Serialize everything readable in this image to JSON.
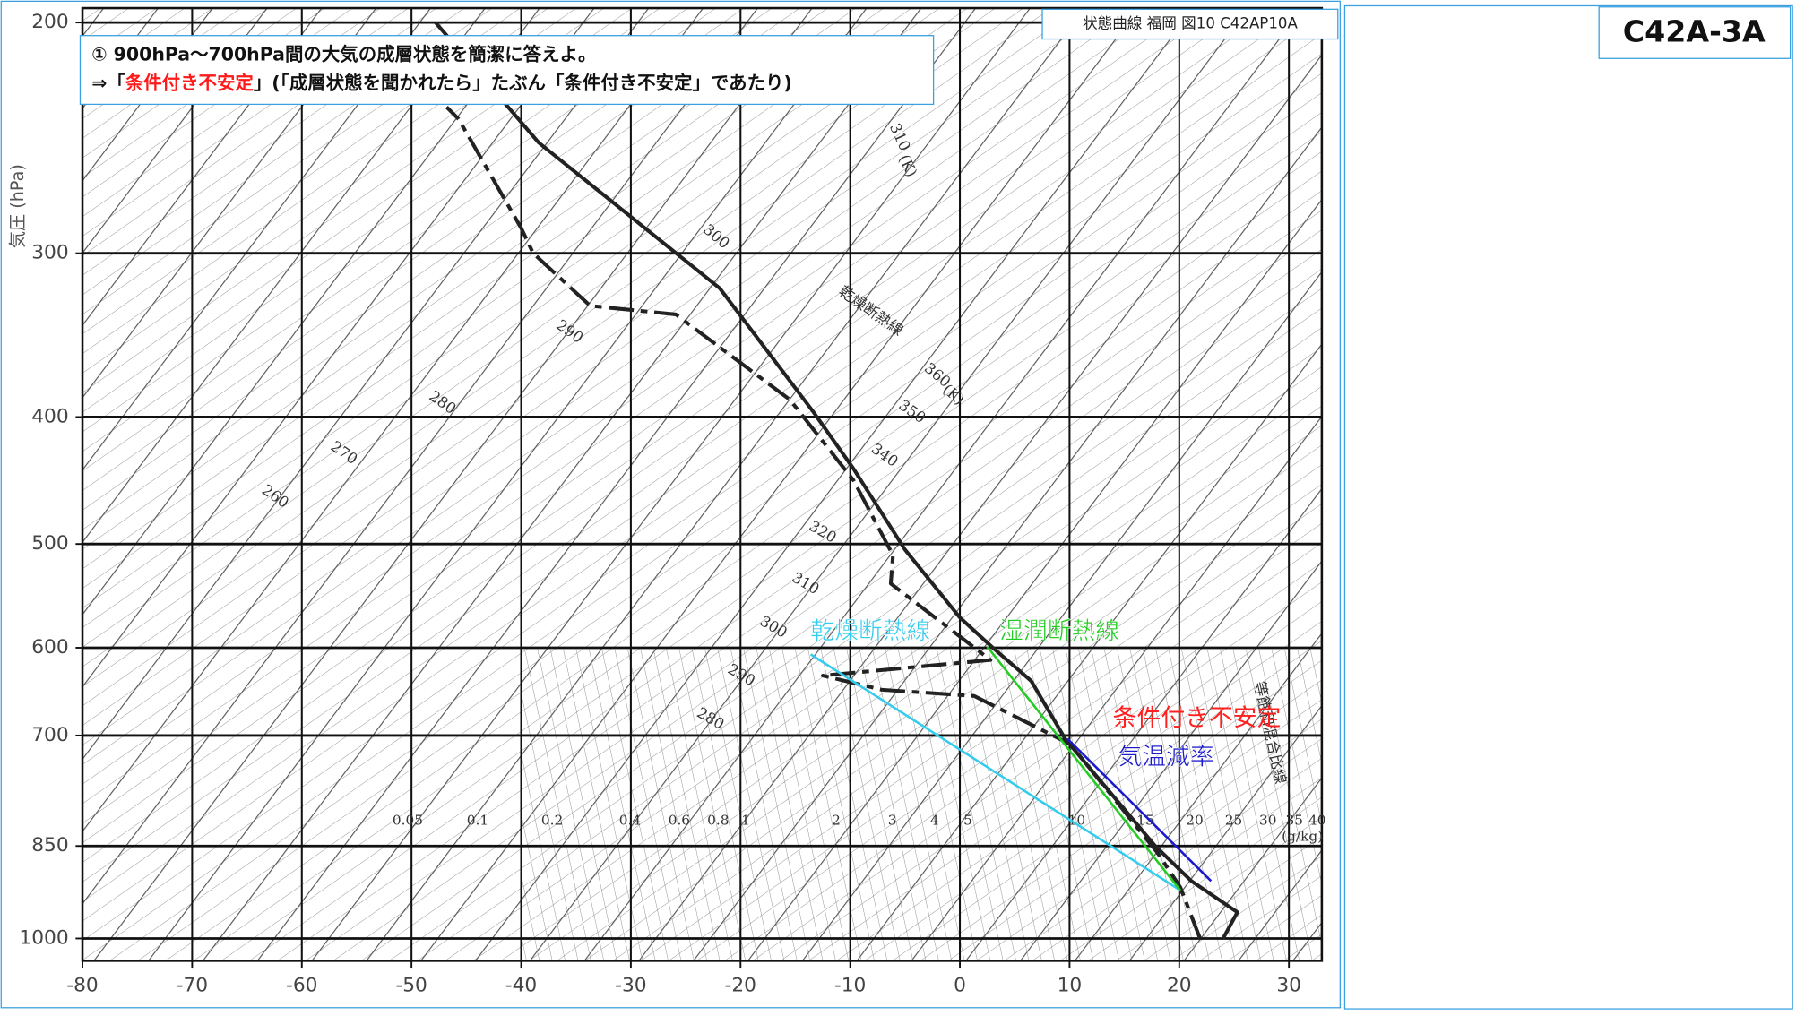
{
  "chart_data": {
    "type": "line",
    "title": "状態曲線 福岡 図10 C42AP10A",
    "code": "C42A-3A",
    "question": {
      "line1": "① 900hPa～700hPa間の大気の成層状態を簡潔に答えよ。",
      "line2_prefix": "⇒「",
      "answer": "条件付き不安定",
      "line2_suffix": "」(「成層状態を聞かれたら」たぶん「条件付き不安定」であたり)"
    },
    "y_label": "気圧 (hPa)",
    "y_scale": "log",
    "xlim": [
      -80,
      33
    ],
    "ylim": [
      1040,
      195
    ],
    "xticks": [
      -80,
      -70,
      -60,
      -50,
      -40,
      -30,
      -20,
      -10,
      0,
      10,
      20,
      30
    ],
    "yticks": [
      200,
      300,
      400,
      500,
      600,
      700,
      850,
      1000
    ],
    "grid": true,
    "series": [
      {
        "color": "#222222",
        "dash": false,
        "x": [
          24.0,
          25.3,
          21.1,
          17.8,
          9.6,
          6.5,
          3.1,
          0.0,
          -5.0,
          -9.7,
          -13.4,
          -21.9,
          -38.4,
          -47.8
        ],
        "values": [
          1000,
          955,
          904,
          850,
          704,
          636,
          601,
          569,
          505,
          438,
          396,
          319,
          247,
          200
        ]
      },
      {
        "color": "#222222",
        "dash": true,
        "x": [
          21.9,
          20.1,
          18.0,
          10.1,
          1.3,
          -7.1,
          -12.5,
          2.8,
          -6.3,
          -6.1,
          -9.7,
          -15.5,
          -25.9,
          -33.7,
          -38.9,
          -40.0,
          -45.7,
          -46.8
        ],
        "values": [
          1000,
          914,
          860,
          711,
          653,
          646,
          630,
          613,
          536,
          510,
          447,
          388,
          334,
          329,
          300,
          287,
          237,
          232
        ]
      },
      {
        "name": "乾燥断熱線",
        "color": "#33ccee",
        "dash": false,
        "x": [
          -13.6,
          20.1
        ],
        "values": [
          607,
          919
        ]
      },
      {
        "name": "湿潤断熱線",
        "color": "#22cc22",
        "dash": false,
        "x": [
          2.5,
          20.1
        ],
        "values": [
          599,
          919
        ]
      },
      {
        "name": "気温減率",
        "color": "#1a1acc",
        "dash": false,
        "x": [
          9.8,
          22.9
        ],
        "values": [
          704,
          904
        ]
      }
    ],
    "annotations": [
      {
        "text": "条件付き不安定",
        "color": "#ff2020"
      }
    ],
    "background_labels": [
      "310",
      "(K)",
      "300",
      "290",
      "280",
      "270",
      "260",
      "乾燥断熱線",
      "360",
      "(K)",
      "350",
      "340",
      "320",
      "310",
      "300",
      "290",
      "280",
      "等飽和混合比線"
    ],
    "mixing_ratio_labels": [
      "0.05",
      "0.1",
      "0.2",
      "0.4",
      "0.6",
      "0.8",
      "1",
      "2",
      "3",
      "4",
      "5",
      "10",
      "15",
      "20",
      "25",
      "30",
      "35",
      "40",
      "(g/kg)"
    ]
  }
}
